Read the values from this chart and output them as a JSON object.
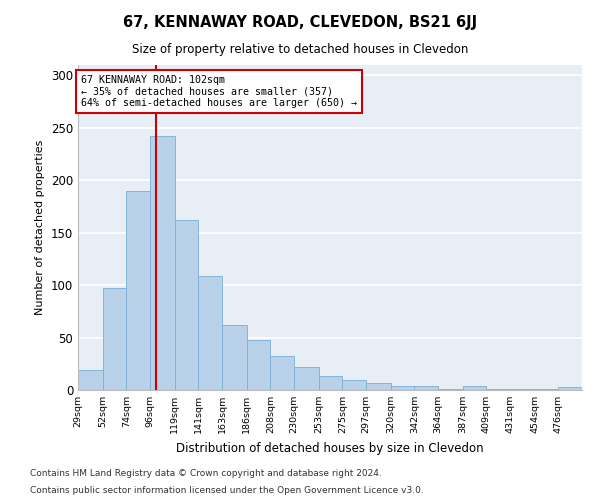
{
  "title": "67, KENNAWAY ROAD, CLEVEDON, BS21 6JJ",
  "subtitle": "Size of property relative to detached houses in Clevedon",
  "xlabel": "Distribution of detached houses by size in Clevedon",
  "ylabel": "Number of detached properties",
  "bar_color": "#b8d0e8",
  "bar_edge_color": "#7aafd4",
  "background_color": "#e8eef6",
  "grid_color": "#ffffff",
  "annotation_box_color": "#cc0000",
  "vline_color": "#cc0000",
  "vline_x": 102,
  "annotation_line1": "67 KENNAWAY ROAD: 102sqm",
  "annotation_line2": "← 35% of detached houses are smaller (357)",
  "annotation_line3": "64% of semi-detached houses are larger (650) →",
  "categories": [
    "29sqm",
    "52sqm",
    "74sqm",
    "96sqm",
    "119sqm",
    "141sqm",
    "163sqm",
    "186sqm",
    "208sqm",
    "230sqm",
    "253sqm",
    "275sqm",
    "297sqm",
    "320sqm",
    "342sqm",
    "364sqm",
    "387sqm",
    "409sqm",
    "431sqm",
    "454sqm",
    "476sqm"
  ],
  "bin_edges": [
    29,
    52,
    74,
    96,
    119,
    141,
    163,
    186,
    208,
    230,
    253,
    275,
    297,
    320,
    342,
    364,
    387,
    409,
    431,
    454,
    476,
    498
  ],
  "values": [
    19,
    97,
    190,
    242,
    162,
    109,
    62,
    48,
    32,
    22,
    13,
    10,
    7,
    4,
    4,
    1,
    4,
    1,
    1,
    1,
    3
  ],
  "ylim": [
    0,
    310
  ],
  "yticks": [
    0,
    50,
    100,
    150,
    200,
    250,
    300
  ],
  "footnote1": "Contains HM Land Registry data © Crown copyright and database right 2024.",
  "footnote2": "Contains public sector information licensed under the Open Government Licence v3.0."
}
